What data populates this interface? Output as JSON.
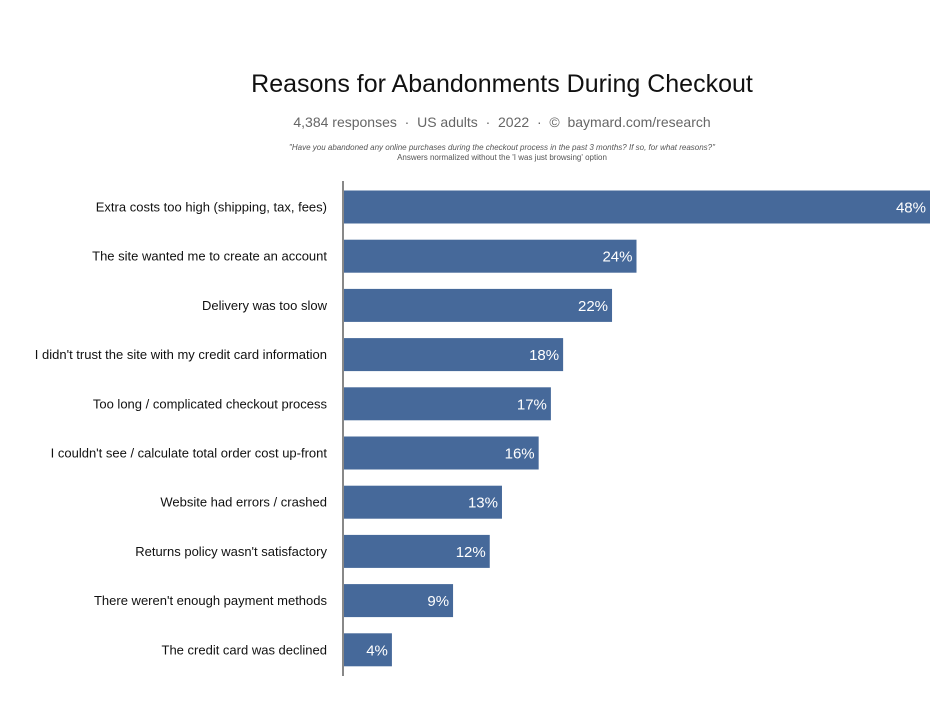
{
  "chart_data": {
    "type": "bar",
    "orientation": "horizontal",
    "title": "Reasons for Abandonments During Checkout",
    "subtitle": "4,384 responses  ·  US adults  ·  2022  ·  ©  baymard.com/research",
    "question": "\"Have you abandoned any online purchases during the checkout process in the past 3 months? If so, for what reasons?\"",
    "note": "Answers normalized without the 'I was just browsing' option",
    "categories": [
      "Extra costs too high (shipping, tax, fees)",
      "The site wanted me to create an account",
      "Delivery was too slow",
      "I didn't trust the site with my credit card information",
      "Too long / complicated checkout process",
      "I couldn't see / calculate total order cost up-front",
      "Website had errors / crashed",
      "Returns policy wasn't satisfactory",
      "There weren't enough payment methods",
      "The credit card was declined"
    ],
    "values": [
      48,
      24,
      22,
      18,
      17,
      16,
      13,
      12,
      9,
      4
    ],
    "labels": [
      "48%",
      "24%",
      "22%",
      "18%",
      "17%",
      "16%",
      "13%",
      "12%",
      "9%",
      "4%"
    ],
    "unit": "%",
    "xlim": [
      0,
      48
    ],
    "grid": false,
    "legend": "none",
    "colors": {
      "bar": "#46699a",
      "axis": "#888888",
      "label": "#ffffff"
    }
  }
}
